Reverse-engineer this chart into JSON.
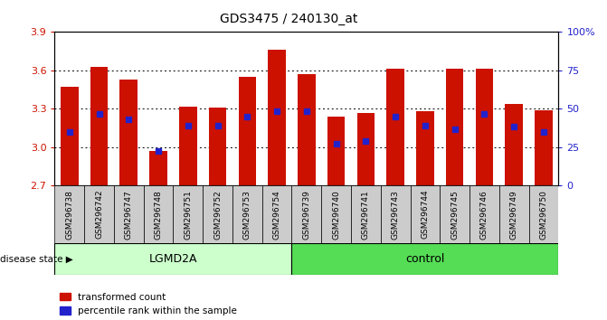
{
  "title": "GDS3475 / 240130_at",
  "samples": [
    "GSM296738",
    "GSM296742",
    "GSM296747",
    "GSM296748",
    "GSM296751",
    "GSM296752",
    "GSM296753",
    "GSM296754",
    "GSM296739",
    "GSM296740",
    "GSM296741",
    "GSM296743",
    "GSM296744",
    "GSM296745",
    "GSM296746",
    "GSM296749",
    "GSM296750"
  ],
  "bar_heights": [
    3.47,
    3.63,
    3.53,
    2.97,
    3.32,
    3.31,
    3.55,
    3.76,
    3.57,
    3.24,
    3.27,
    3.61,
    3.28,
    3.61,
    3.61,
    3.34,
    3.29
  ],
  "blue_dot_y": [
    3.12,
    3.26,
    3.22,
    2.97,
    3.17,
    3.17,
    3.24,
    3.28,
    3.28,
    3.03,
    3.05,
    3.24,
    3.17,
    3.14,
    3.26,
    3.16,
    3.12
  ],
  "bar_color": "#cc1100",
  "dot_color": "#2222cc",
  "ymin": 2.7,
  "ymax": 3.9,
  "yticks": [
    2.7,
    3.0,
    3.3,
    3.6,
    3.9
  ],
  "right_yticks": [
    0,
    25,
    50,
    75,
    100
  ],
  "right_ytick_labels": [
    "0",
    "25",
    "50",
    "75",
    "100%"
  ],
  "group_labels": [
    "LGMD2A",
    "control"
  ],
  "group_counts": [
    8,
    9
  ],
  "lgmd2a_color": "#ccffcc",
  "control_color": "#55dd55",
  "sample_bg_color": "#cccccc",
  "disease_state_label": "disease state",
  "legend_items": [
    "transformed count",
    "percentile rank within the sample"
  ],
  "left_axis_color": "#cc1100",
  "right_axis_color": "#2222cc",
  "bar_bottom": 2.7,
  "bar_width": 0.6
}
